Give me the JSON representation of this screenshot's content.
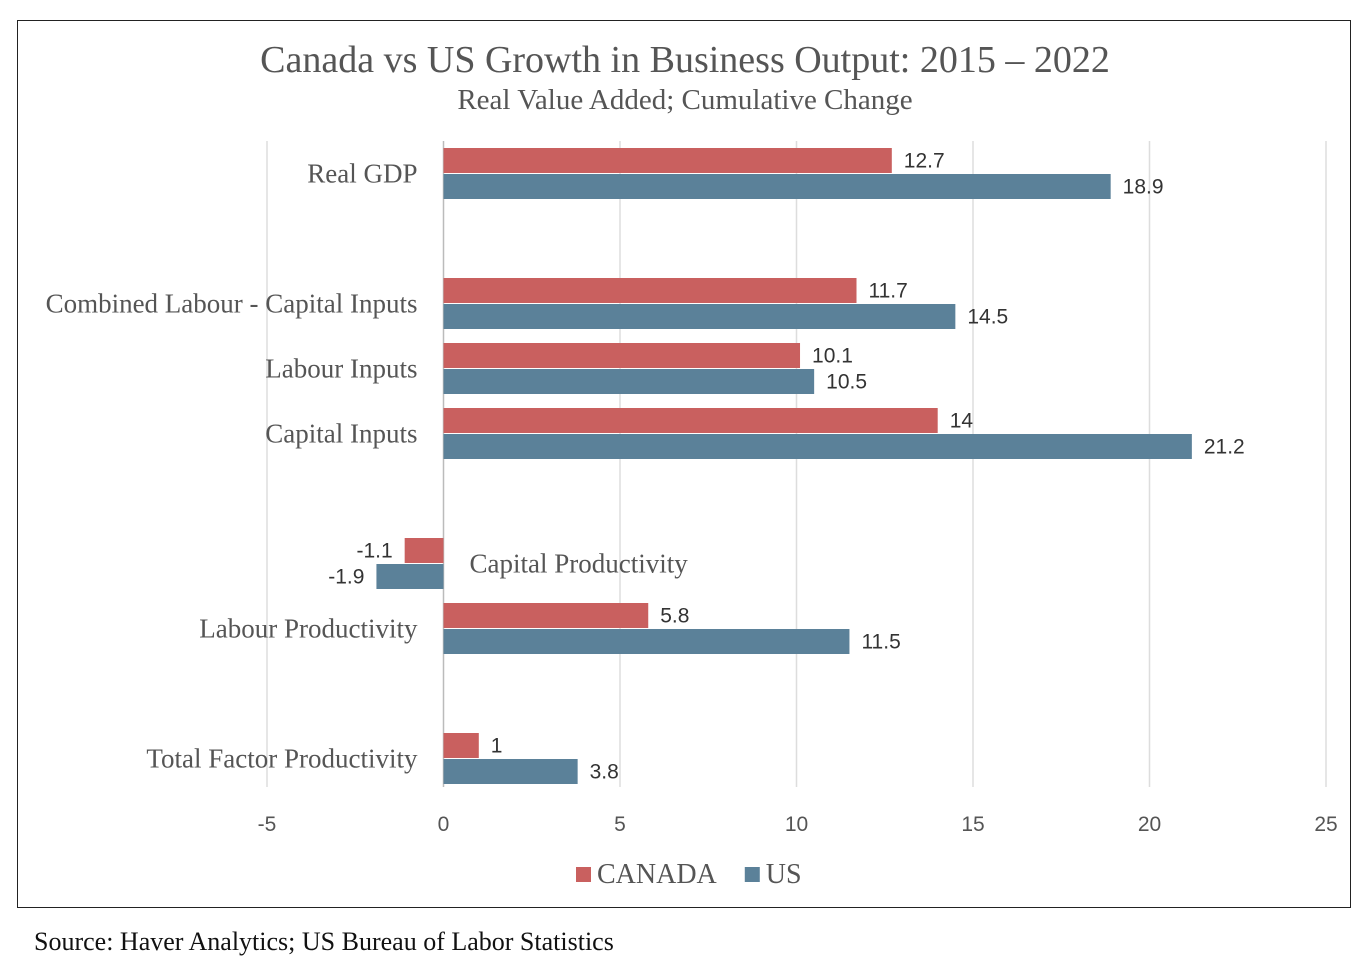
{
  "chart_data": {
    "type": "bar",
    "orientation": "horizontal",
    "title": "Canada vs US Growth in Business Output: 2015 – 2022",
    "subtitle": "Real Value Added; Cumulative Change",
    "categories": [
      "Real GDP",
      "Combined Labour - Capital Inputs",
      "Labour Inputs",
      "Capital Inputs",
      "Capital Productivity",
      "Labour Productivity",
      "Total Factor Productivity"
    ],
    "series": [
      {
        "name": "CANADA",
        "color": "#c9605f",
        "values": [
          12.7,
          11.7,
          10.1,
          14,
          -1.1,
          5.8,
          1
        ]
      },
      {
        "name": "US",
        "color": "#5b8199",
        "values": [
          18.9,
          14.5,
          10.5,
          21.2,
          -1.9,
          11.5,
          3.8
        ]
      }
    ],
    "value_labels": {
      "CANADA": [
        "12.7",
        "11.7",
        "10.1",
        "14",
        "-1.1",
        "5.8",
        "1"
      ],
      "US": [
        "18.9",
        "14.5",
        "10.5",
        "21.2",
        "-1.9",
        "11.5",
        "3.8"
      ]
    },
    "xlim": [
      -5,
      25
    ],
    "xticks": [
      "-5",
      "0",
      "5",
      "10",
      "15",
      "20",
      "25"
    ],
    "grid": "vertical",
    "legend": "bottom-center"
  },
  "source": "Source: Haver Analytics; US Bureau of Labor Statistics"
}
